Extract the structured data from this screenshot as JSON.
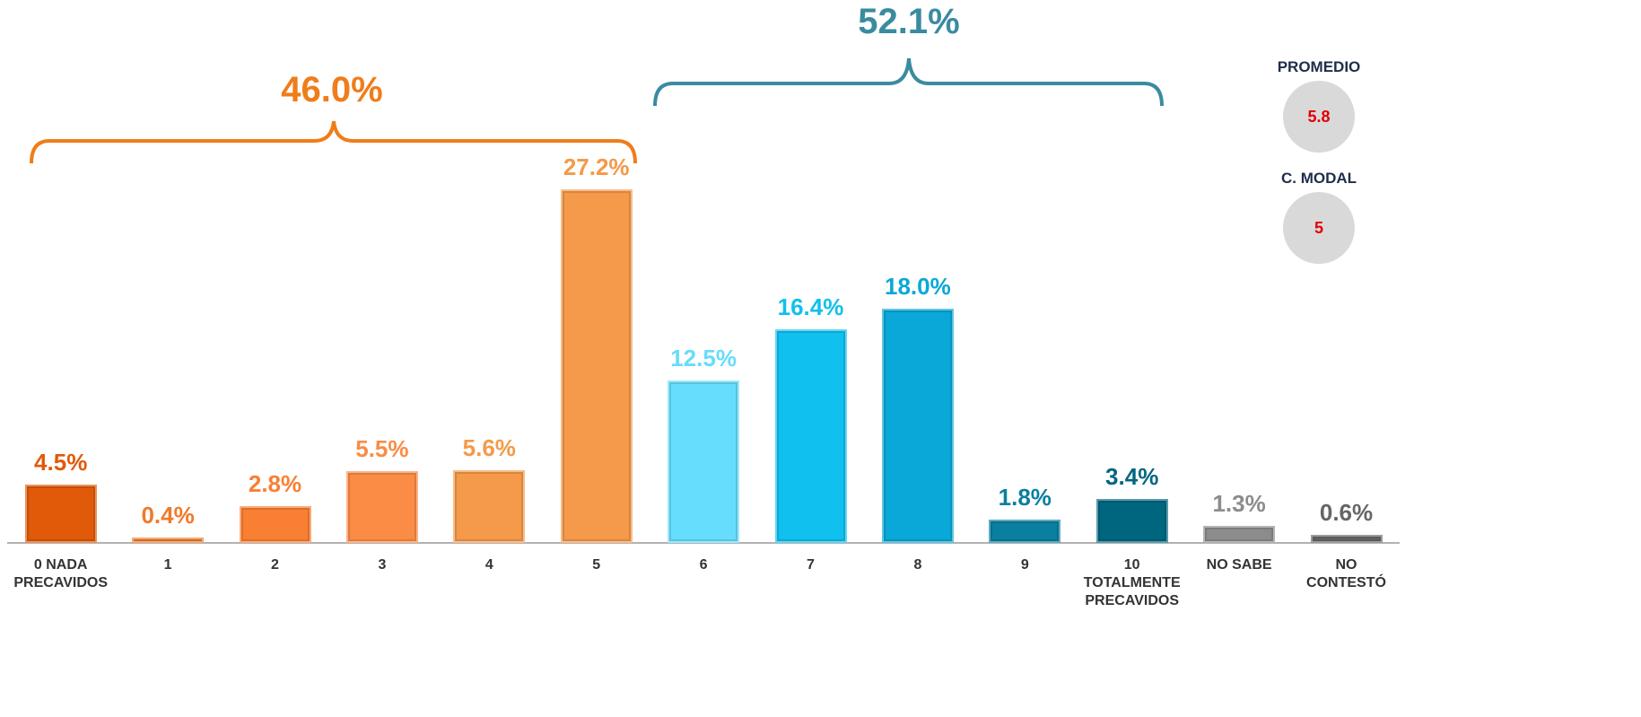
{
  "chart_data": {
    "type": "bar",
    "categories": [
      "0 NADA\nPRECAVIDOS",
      "1",
      "2",
      "3",
      "4",
      "5",
      "6",
      "7",
      "8",
      "9",
      "10\nTOTALMENTE\nPRECAVIDOS",
      "NO SABE",
      "NO\nCONTESTÓ"
    ],
    "values": [
      4.5,
      0.4,
      2.8,
      5.5,
      5.6,
      27.2,
      12.5,
      16.4,
      18.0,
      1.8,
      3.4,
      1.3,
      0.6
    ],
    "value_labels": [
      "4.5%",
      "0.4%",
      "2.8%",
      "5.5%",
      "5.6%",
      "27.2%",
      "12.5%",
      "16.4%",
      "18.0%",
      "1.8%",
      "3.4%",
      "1.3%",
      "0.6%"
    ],
    "colors": [
      "#e05a0a",
      "#f07a2a",
      "#f97f33",
      "#fb8c45",
      "#f49a4a",
      "#f49a4a",
      "#66ddfc",
      "#10c0ee",
      "#0aa8d8",
      "#0a7fa0",
      "#006680",
      "#8c8c8c",
      "#666666"
    ],
    "label_colors": [
      "#e05a0a",
      "#f07a2a",
      "#f97f33",
      "#fb8c45",
      "#f49a4a",
      "#f49a4a",
      "#66ddfc",
      "#10c0ee",
      "#0aa8d8",
      "#0a7fa0",
      "#006680",
      "#8c8c8c",
      "#666666"
    ],
    "annotations": [
      {
        "text": "46.0%",
        "color": "#ef7d1a"
      },
      {
        "text": "52.1%",
        "color": "#3a8ba0"
      }
    ],
    "stats": [
      {
        "label": "PROMEDIO",
        "value": "5.8"
      },
      {
        "label": "C. MODAL",
        "value": "5"
      }
    ]
  }
}
